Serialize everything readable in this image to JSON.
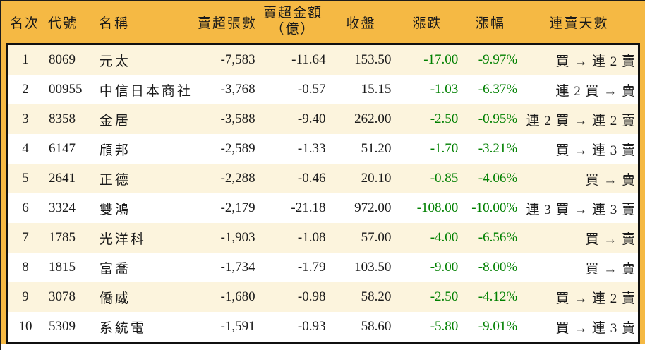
{
  "chart_data": {
    "type": "table",
    "columns": [
      {
        "key": "rank",
        "label": "名次"
      },
      {
        "key": "code",
        "label": "代號"
      },
      {
        "key": "name",
        "label": "名稱"
      },
      {
        "key": "sell_volume",
        "label": "賣超張數"
      },
      {
        "key": "sell_amount",
        "label": "賣超金額",
        "label_line2": "（億）"
      },
      {
        "key": "close",
        "label": "收盤"
      },
      {
        "key": "change",
        "label": "漲跌"
      },
      {
        "key": "change_pct",
        "label": "漲幅"
      },
      {
        "key": "streak",
        "label": "連賣天數"
      }
    ],
    "rows": [
      {
        "rank": "1",
        "code": "8069",
        "name": "元太",
        "sell_volume": "-7,583",
        "sell_amount": "-11.64",
        "close": "153.50",
        "change": "-17.00",
        "change_pct": "-9.97%",
        "streak": "買 → 連 2 賣"
      },
      {
        "rank": "2",
        "code": "00955",
        "name": "中信日本商社",
        "sell_volume": "-3,768",
        "sell_amount": "-0.57",
        "close": "15.15",
        "change": "-1.03",
        "change_pct": "-6.37%",
        "streak": "連 2 買 → 賣"
      },
      {
        "rank": "3",
        "code": "8358",
        "name": "金居",
        "sell_volume": "-3,588",
        "sell_amount": "-9.40",
        "close": "262.00",
        "change": "-2.50",
        "change_pct": "-0.95%",
        "streak": "連 2 買 → 連 2 賣"
      },
      {
        "rank": "4",
        "code": "6147",
        "name": "頎邦",
        "sell_volume": "-2,589",
        "sell_amount": "-1.33",
        "close": "51.20",
        "change": "-1.70",
        "change_pct": "-3.21%",
        "streak": "買 → 連 3 賣"
      },
      {
        "rank": "5",
        "code": "2641",
        "name": "正德",
        "sell_volume": "-2,288",
        "sell_amount": "-0.46",
        "close": "20.10",
        "change": "-0.85",
        "change_pct": "-4.06%",
        "streak": "買 → 賣"
      },
      {
        "rank": "6",
        "code": "3324",
        "name": "雙鴻",
        "sell_volume": "-2,179",
        "sell_amount": "-21.18",
        "close": "972.00",
        "change": "-108.00",
        "change_pct": "-10.00%",
        "streak": "連 3 買 → 連 3 賣"
      },
      {
        "rank": "7",
        "code": "1785",
        "name": "光洋科",
        "sell_volume": "-1,903",
        "sell_amount": "-1.08",
        "close": "57.00",
        "change": "-4.00",
        "change_pct": "-6.56%",
        "streak": "買 → 賣"
      },
      {
        "rank": "8",
        "code": "1815",
        "name": "富喬",
        "sell_volume": "-1,734",
        "sell_amount": "-1.79",
        "close": "103.50",
        "change": "-9.00",
        "change_pct": "-8.00%",
        "streak": "買 → 賣"
      },
      {
        "rank": "9",
        "code": "3078",
        "name": "僑威",
        "sell_volume": "-1,680",
        "sell_amount": "-0.98",
        "close": "58.20",
        "change": "-2.50",
        "change_pct": "-4.12%",
        "streak": "買 → 連 2 賣"
      },
      {
        "rank": "10",
        "code": "5309",
        "name": "系統電",
        "sell_volume": "-1,591",
        "sell_amount": "-0.93",
        "close": "58.60",
        "change": "-5.80",
        "change_pct": "-9.01%",
        "streak": "買 → 連 3 賣"
      }
    ]
  },
  "colors": {
    "header_bg": "#F5B944",
    "row_alt_bg": "#FCF4DD",
    "row_bg": "#FFFFFF",
    "down_green": "#008000",
    "border": "#101010",
    "text": "#1A1A1A"
  }
}
